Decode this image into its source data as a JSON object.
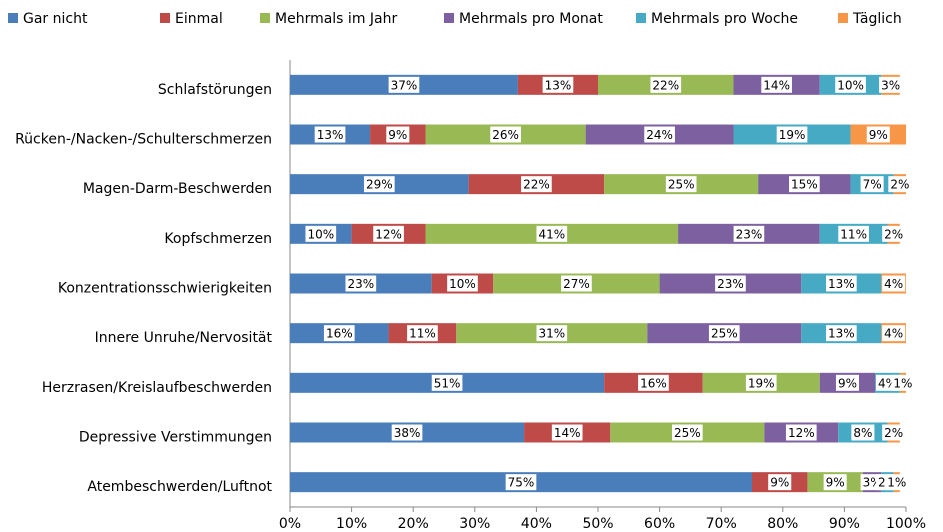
{
  "chart_data": {
    "type": "stacked-barh",
    "categories": [
      "Schlafstörungen",
      "Rücken-/Nacken-/Schulterschmerzen",
      "Magen-Darm-Beschwerden",
      "Kopfschmerzen",
      "Konzentrationsschwierigkeiten",
      "Innere Unruhe/Nervosität",
      "Herzrasen/Kreislaufbeschwerden",
      "Depressive Verstimmungen",
      "Atembeschwerden/Luftnot"
    ],
    "series": [
      {
        "name": "Gar nicht",
        "color": "#4a7ebb",
        "values": [
          37,
          13,
          29,
          10,
          23,
          16,
          51,
          38,
          75
        ],
        "value_labels": [
          "37%",
          "13%",
          "29%",
          "10%",
          "23%",
          "16%",
          "51%",
          "38%",
          "75%"
        ]
      },
      {
        "name": "Einmal",
        "color": "#be4b48",
        "values": [
          13,
          9,
          22,
          12,
          10,
          11,
          16,
          14,
          9
        ],
        "value_labels": [
          "13%",
          "9%",
          "22%",
          "12%",
          "10%",
          "11%",
          "16%",
          "14%",
          "9%"
        ]
      },
      {
        "name": "Mehrmals im Jahr",
        "color": "#98b954",
        "values": [
          22,
          26,
          25,
          41,
          27,
          31,
          19,
          25,
          9
        ],
        "value_labels": [
          "22%",
          "26%",
          "25%",
          "41%",
          "27%",
          "31%",
          "19%",
          "25%",
          "9%"
        ]
      },
      {
        "name": "Mehrmals pro Monat",
        "color": "#7d60a0",
        "values": [
          14,
          24,
          15,
          23,
          23,
          25,
          9,
          12,
          3
        ],
        "value_labels": [
          "14%",
          "24%",
          "15%",
          "23%",
          "23%",
          "25%",
          "9%",
          "12%",
          "3%"
        ]
      },
      {
        "name": "Mehrmals pro Woche",
        "color": "#46aac5",
        "values": [
          10,
          19,
          7,
          11,
          13,
          13,
          4,
          8,
          2
        ],
        "value_labels": [
          "10%",
          "19%",
          "7%",
          "11%",
          "13%",
          "13%",
          "4%",
          "8%",
          "2%"
        ]
      },
      {
        "name": "Täglich",
        "color": "#f79646",
        "values": [
          3,
          9,
          2,
          2,
          4,
          4,
          1,
          2,
          1
        ],
        "value_labels": [
          "3%",
          "9%",
          "2%",
          "2%",
          "4%",
          "4%",
          "1%",
          "2%",
          "1%"
        ]
      }
    ],
    "xlim": [
      0,
      100
    ],
    "xticks": [
      {
        "value": 0,
        "label": "0%"
      },
      {
        "value": 10,
        "label": "10%"
      },
      {
        "value": 20,
        "label": "20%"
      },
      {
        "value": 30,
        "label": "30%"
      },
      {
        "value": 40,
        "label": "40%"
      },
      {
        "value": 50,
        "label": "50%"
      },
      {
        "value": 60,
        "label": "60%"
      },
      {
        "value": 70,
        "label": "70%"
      },
      {
        "value": 80,
        "label": "80%"
      },
      {
        "value": 90,
        "label": "90%"
      },
      {
        "value": 100,
        "label": "100%"
      }
    ],
    "legend": "top"
  }
}
